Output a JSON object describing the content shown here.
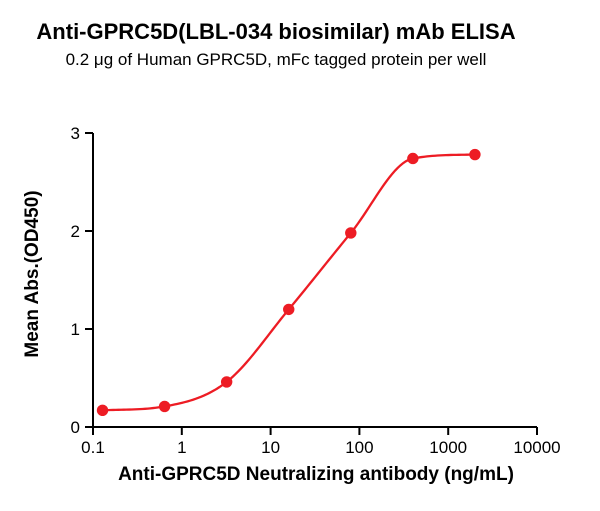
{
  "header": {
    "title": "Anti-GPRC5D(LBL-034 biosimilar) mAb ELISA",
    "subtitle": "0.2 μg of Human GPRC5D, mFc tagged protein per well"
  },
  "chart_data": {
    "type": "scatter",
    "title": "Anti-GPRC5D(LBL-034 biosimilar) mAb ELISA",
    "subtitle": "0.2 μg of Human GPRC5D, mFc tagged protein per well",
    "xlabel": "Anti-GPRC5D Neutralizing antibody (ng/mL)",
    "ylabel": "Mean Abs.(OD450)",
    "series": [
      {
        "name": "Anti-GPRC5D(LBL-034 biosimilar) mAb",
        "x": [
          0.128,
          0.64,
          3.2,
          16,
          80,
          400,
          2000
        ],
        "y": [
          0.17,
          0.21,
          0.46,
          1.2,
          1.98,
          2.74,
          2.78
        ],
        "fit": "sigmoidal dose-response curve through points"
      }
    ],
    "x_axis": {
      "scale": "log",
      "range": [
        0.1,
        10000
      ],
      "ticks": [
        0.1,
        1,
        10,
        100,
        1000,
        10000
      ],
      "tick_labels": [
        "0.1",
        "1",
        "10",
        "100",
        "1000",
        "10000"
      ]
    },
    "y_axis": {
      "scale": "linear",
      "range": [
        0,
        3
      ],
      "ticks": [
        0,
        1,
        2,
        3
      ],
      "tick_labels": [
        "0",
        "1",
        "2",
        "3"
      ]
    },
    "grid": false,
    "legend": false,
    "colors": {
      "points": "#ED1C24",
      "line": "#ED1C24",
      "axis": "#000000",
      "text": "#000000",
      "background": "#FFFFFF"
    }
  }
}
